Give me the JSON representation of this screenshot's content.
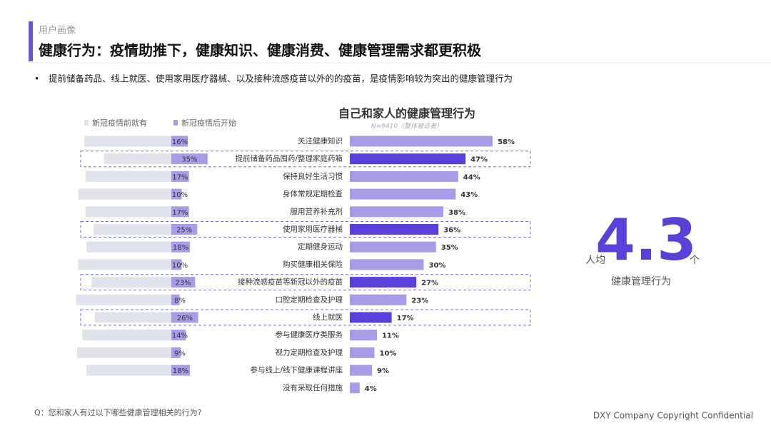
{
  "header": {
    "section": "用户画像",
    "title": "健康行为：疫情助推下，健康知识、健康消费、健康管理需求都更积极",
    "bullet": "提前储备药品、线上就医、使用家用医疗器械、以及接种流感疫苗以外的的疫苗，是疫情影响较为突出的健康管理行为"
  },
  "chart_data": {
    "type": "bar",
    "title": "自己和家人的健康管理行为",
    "subtitle": "N=9410（整体被访者）",
    "categories": [
      "关注健康知识",
      "提前储备药品囤药/整理家庭药箱",
      "保持良好生活习惯",
      "身体常规定期检查",
      "服用营养补充剂",
      "使用家用医疗器械",
      "定期健身运动",
      "购买健康相关保险",
      "接种流感疫苗等新冠以外的疫苗",
      "口腔定期检查及护理",
      "线上就医",
      "参与健康医疗类服务",
      "视力定期检查及护理",
      "参与线上/线下健康课程讲座",
      "没有采取任何措施"
    ],
    "values": [
      58,
      47,
      44,
      43,
      38,
      36,
      35,
      30,
      27,
      23,
      17,
      11,
      10,
      9,
      4
    ],
    "value_labels": [
      "58%",
      "47%",
      "44%",
      "43%",
      "38%",
      "36%",
      "35%",
      "30%",
      "27%",
      "23%",
      "17%",
      "11%",
      "10%",
      "9%",
      "4%"
    ],
    "color": "#a99be8",
    "highlight_color": "#5a3fd8",
    "highlight": [
      1,
      5,
      8,
      10
    ],
    "series": [
      {
        "name": "新冠疫情前就有",
        "color": "#e0e3eb",
        "values": [
          84,
          65,
          83,
          90,
          83,
          75,
          82,
          90,
          77,
          92,
          74,
          86,
          91,
          82,
          null
        ]
      },
      {
        "name": "新冠疫情后开始",
        "color": "#a99be8",
        "values": [
          16,
          35,
          17,
          10,
          17,
          25,
          18,
          10,
          23,
          8,
          26,
          14,
          9,
          18,
          null
        ],
        "value_labels": [
          "16%",
          "35%",
          "17%",
          "10%",
          "17%",
          "25%",
          "18%",
          "10%",
          "23%",
          "8%",
          "26%",
          "14%",
          "9%",
          "18%",
          null
        ]
      }
    ]
  },
  "stat": {
    "prefix": "人均",
    "value": 4.3,
    "unit": "个",
    "label": "健康管理行为"
  },
  "footer": {
    "question": "Q：您和家人有过以下哪些健康管理相关的行为?",
    "copyright": "DXY Company Copyright Confidential"
  }
}
